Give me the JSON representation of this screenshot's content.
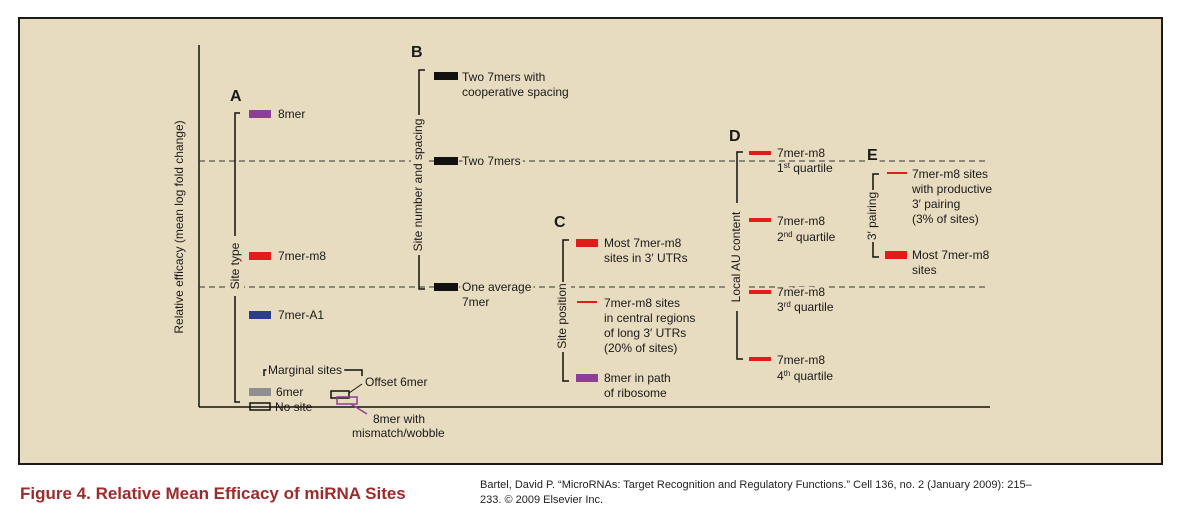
{
  "colors": {
    "panel_bg": "#e8dcc0",
    "border": "#1a1a1a",
    "red": "#e41b1b",
    "purple": "#8e3f93",
    "blue": "#2c3d8e",
    "gray": "#8f8f8f",
    "black": "#111111",
    "caption": "#9e2a2b"
  },
  "y_axis_label": "Relative efficacy (mean log fold change)",
  "panels": {
    "A": {
      "letter": "A",
      "group_label": "Site type",
      "marginal_label": "Marginal sites",
      "items": [
        {
          "label": "8mer",
          "color": "purple"
        },
        {
          "label": "7mer-m8",
          "color": "red"
        },
        {
          "label": "7mer-A1",
          "color": "blue"
        },
        {
          "label": "6mer",
          "color": "gray"
        },
        {
          "label": "No site",
          "color": "outline"
        },
        {
          "label": "Offset 6mer",
          "color": "outline"
        },
        {
          "label_lines": [
            "8mer with",
            "mismatch/wobble"
          ],
          "color": "purple-outline"
        }
      ]
    },
    "B": {
      "letter": "B",
      "group_label": "Site number and spacing",
      "items": [
        {
          "label_lines": [
            "Two 7mers with",
            "cooperative spacing"
          ],
          "color": "black"
        },
        {
          "label": "Two 7mers",
          "color": "black"
        },
        {
          "label_lines": [
            "One average",
            "7mer"
          ],
          "color": "black"
        }
      ]
    },
    "C": {
      "letter": "C",
      "group_label": "Site position",
      "items": [
        {
          "label_lines": [
            "Most 7mer-m8",
            "sites in 3′ UTRs"
          ],
          "color": "red"
        },
        {
          "label_lines": [
            "7mer-m8 sites",
            "in central regions",
            "of long 3′ UTRs",
            "(20% of sites)"
          ],
          "color": "red-thin"
        },
        {
          "label_lines": [
            "8mer in path",
            "of ribosome"
          ],
          "color": "purple"
        }
      ]
    },
    "D": {
      "letter": "D",
      "group_label": "Local AU content",
      "items": [
        {
          "label": "7mer-m8",
          "quartile_num": "1",
          "quartile_sup": "st",
          "quartile_word": " quartile",
          "color": "red"
        },
        {
          "label": "7mer-m8",
          "quartile_num": "2",
          "quartile_sup": "nd",
          "quartile_word": " quartile",
          "color": "red"
        },
        {
          "label": "7mer-m8",
          "quartile_num": "3",
          "quartile_sup": "rd",
          "quartile_word": " quartile",
          "color": "red"
        },
        {
          "label": "7mer-m8",
          "quartile_num": "4",
          "quartile_sup": "th",
          "quartile_word": " quartile",
          "color": "red"
        }
      ]
    },
    "E": {
      "letter": "E",
      "group_label": "3′ pairing",
      "items": [
        {
          "label_lines": [
            "7mer-m8 sites",
            "with productive",
            "3′ pairing",
            "(3% of sites)"
          ],
          "color": "red-thin"
        },
        {
          "label_lines": [
            "Most 7mer-m8",
            "sites"
          ],
          "color": "red"
        }
      ]
    }
  },
  "caption": "Figure 4. Relative Mean Efficacy of miRNA Sites",
  "citation": "Bartel, David P. “MicroRNAs: Target Recognition and Regulatory Functions.” Cell 136, no. 2 (January 2009): 215–233. © 2009 Elsevier Inc."
}
